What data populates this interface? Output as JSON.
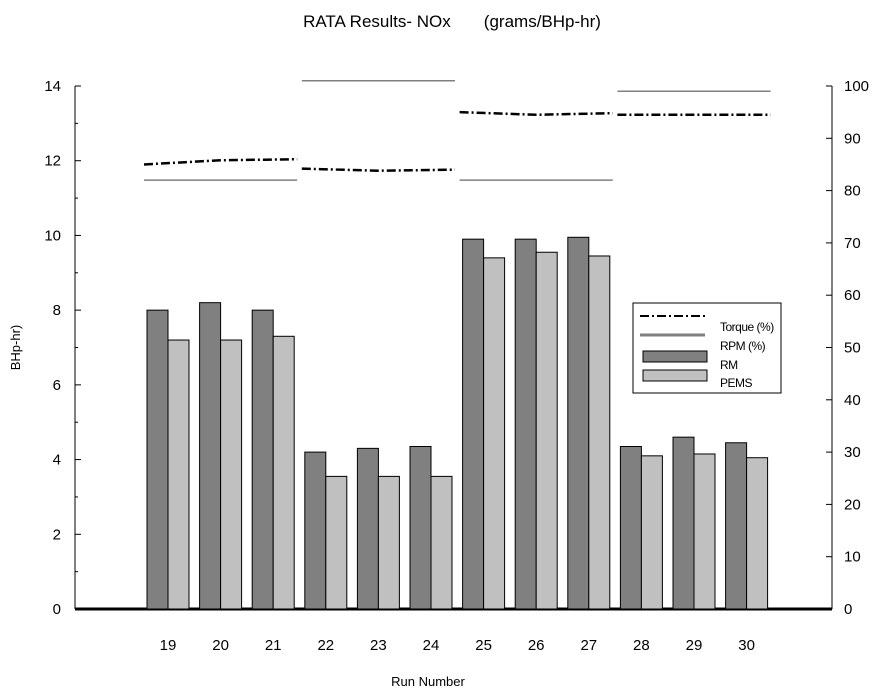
{
  "chart_data": {
    "type": "bar",
    "title": "RATA Results- NOx       (grams/BHp-hr)",
    "xlabel": "Run Number",
    "ylabel": "BHp-hr)",
    "categories": [
      "19",
      "20",
      "21",
      "22",
      "23",
      "24",
      "25",
      "26",
      "27",
      "28",
      "29",
      "30"
    ],
    "ylim": [
      0,
      14
    ],
    "y_ticks": [
      "0",
      "2",
      "4",
      "6",
      "8",
      "10",
      "12",
      "14"
    ],
    "y2lim": [
      0,
      100
    ],
    "y2_ticks": [
      "0",
      "10",
      "20",
      "30",
      "40",
      "50",
      "60",
      "70",
      "80",
      "90",
      "100"
    ],
    "grid": false,
    "legend_position": "right",
    "series": [
      {
        "name": "RM",
        "axis": "left",
        "color": "#808080",
        "values": [
          8.0,
          8.2,
          8.0,
          4.2,
          4.3,
          4.35,
          9.9,
          9.9,
          9.95,
          4.35,
          4.6,
          4.45
        ]
      },
      {
        "name": "PEMS",
        "axis": "left",
        "color": "#c0c0c0",
        "values": [
          7.2,
          7.2,
          7.3,
          3.55,
          3.55,
          3.55,
          9.4,
          9.55,
          9.45,
          4.1,
          4.15,
          4.05
        ]
      },
      {
        "name": "Torque (%)",
        "axis": "right",
        "style": "dash-dot",
        "color": "#000000",
        "groups": [
          {
            "runs": [
              "19",
              "20",
              "21"
            ],
            "values": [
              85.0,
              85.8,
              86.0
            ]
          },
          {
            "runs": [
              "22",
              "23",
              "24"
            ],
            "values": [
              84.2,
              83.8,
              84.0
            ]
          },
          {
            "runs": [
              "25",
              "26",
              "27"
            ],
            "values": [
              95.0,
              94.5,
              94.8
            ]
          },
          {
            "runs": [
              "28",
              "29",
              "30"
            ],
            "values": [
              94.5,
              94.5,
              94.5
            ]
          }
        ]
      },
      {
        "name": "RPM (%)",
        "axis": "right",
        "style": "solid",
        "color": "#808080",
        "groups": [
          {
            "runs": [
              "19",
              "20",
              "21"
            ],
            "values": [
              82.0,
              82.0,
              82.0
            ]
          },
          {
            "runs": [
              "22",
              "23",
              "24"
            ],
            "values": [
              101.0,
              101.0,
              101.0
            ]
          },
          {
            "runs": [
              "25",
              "26",
              "27"
            ],
            "values": [
              82.0,
              82.0,
              82.0
            ]
          },
          {
            "runs": [
              "28",
              "29",
              "30"
            ],
            "values": [
              99.0,
              99.0,
              99.0
            ]
          }
        ]
      }
    ]
  }
}
